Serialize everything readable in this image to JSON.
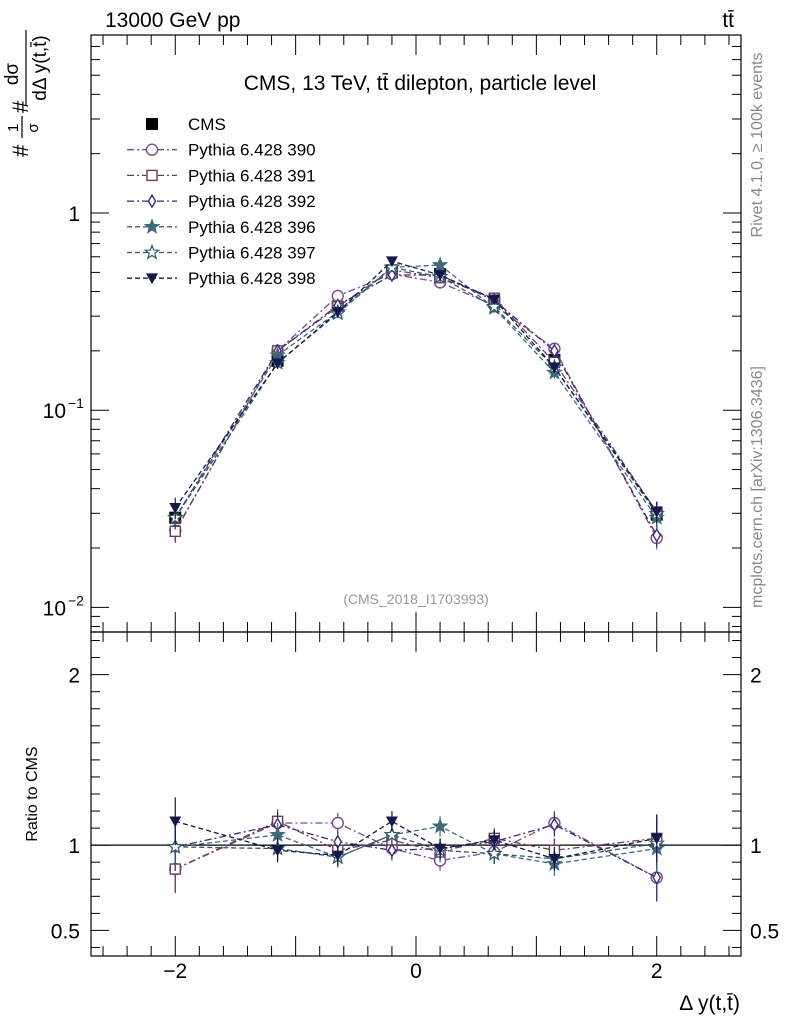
{
  "header": {
    "left": "13000 GeV pp",
    "right": "tt̄"
  },
  "main_plot": {
    "title": "CMS, 13 TeV, tt̄ dilepton, particle level",
    "ylabel": "#1/σ# dσ / dΔ y(t,t̄)",
    "ylabel_num": "dσ",
    "ylabel_den": "dΔ y(t,t̄)",
    "ylabel_pre": "#",
    "ylabel_frac_num": "1",
    "ylabel_frac_den": "σ",
    "ylabel_post": "#",
    "watermark": "(CMS_2018_I1703993)",
    "yscale": "log",
    "ylim": [
      0.0075,
      8
    ],
    "yticks": [
      {
        "value": 0.01,
        "base": "10",
        "exp": "−2"
      },
      {
        "value": 0.1,
        "base": "10",
        "exp": "−1"
      },
      {
        "value": 1,
        "base": "1",
        "exp": ""
      }
    ]
  },
  "ratio_plot": {
    "ylabel": "Ratio to CMS",
    "ylim": [
      0.35,
      2.25
    ],
    "yticks": [
      "0.5",
      "1",
      "2"
    ]
  },
  "xaxis": {
    "label": "Δ y(t,t̄)",
    "xlim": [
      -2.7,
      2.7
    ],
    "ticks": [
      "−2",
      "0",
      "2"
    ]
  },
  "side_text": {
    "rivet": "Rivet 4.1.0, ≥ 100k events",
    "mcplots": "mcplots.cern.ch [arXiv:1306.3436]"
  },
  "chart_data": {
    "type": "scatter",
    "x": [
      -2.0,
      -1.15,
      -0.65,
      -0.2,
      0.2,
      0.65,
      1.15,
      2.0
    ],
    "series": [
      {
        "name": "CMS",
        "color": "#000000",
        "marker": "filled-square",
        "line": "none",
        "values": [
          0.0285,
          0.178,
          0.335,
          0.5,
          0.49,
          0.355,
          0.18,
          0.0295
        ],
        "ratio": [
          1,
          1,
          1,
          1,
          1,
          1,
          1,
          1
        ]
      },
      {
        "name": "Pythia 6.428 390",
        "color": "#7a4a8c",
        "marker": "open-circle",
        "line": "dashdot",
        "values": [
          0.0245,
          0.2,
          0.38,
          0.49,
          0.445,
          0.34,
          0.205,
          0.0225
        ],
        "ratio": [
          0.86,
          1.13,
          1.13,
          0.98,
          0.91,
          0.96,
          1.13,
          0.81
        ]
      },
      {
        "name": "Pythia 6.428 391",
        "color": "#6a3f5c",
        "marker": "open-square",
        "line": "dashdot",
        "values": [
          0.0243,
          0.2,
          0.335,
          0.515,
          0.47,
          0.37,
          0.175,
          0.0305
        ],
        "ratio": [
          0.86,
          1.14,
          0.97,
          1.03,
          0.96,
          1.04,
          0.97,
          1.04
        ]
      },
      {
        "name": "Pythia 6.428 392",
        "color": "#3d2a7a",
        "marker": "open-diamond",
        "line": "dashdot",
        "values": [
          0.0285,
          0.2,
          0.34,
          0.485,
          0.485,
          0.36,
          0.2,
          0.0232
        ],
        "ratio": [
          0.99,
          1.12,
          1.02,
          0.97,
          0.98,
          1.02,
          1.12,
          0.81
        ]
      },
      {
        "name": "Pythia 6.428 396",
        "color": "#3f6a7a",
        "marker": "filled-star",
        "line": "dashed",
        "values": [
          0.0285,
          0.19,
          0.315,
          0.53,
          0.545,
          0.33,
          0.155,
          0.0285
        ],
        "ratio": [
          0.99,
          1.06,
          0.93,
          1.06,
          1.11,
          0.95,
          0.89,
          0.98
        ]
      },
      {
        "name": "Pythia 6.428 397",
        "color": "#2f5a6a",
        "marker": "open-star",
        "line": "dashed",
        "values": [
          0.0285,
          0.174,
          0.31,
          0.53,
          0.475,
          0.335,
          0.165,
          0.0298
        ],
        "ratio": [
          0.99,
          0.98,
          0.93,
          1.06,
          0.97,
          0.95,
          0.92,
          1.01
        ]
      },
      {
        "name": "Pythia 6.428 398",
        "color": "#15184a",
        "marker": "filled-triangle-down",
        "line": "dashed",
        "values": [
          0.032,
          0.173,
          0.315,
          0.57,
          0.485,
          0.365,
          0.165,
          0.0305
        ],
        "ratio": [
          1.14,
          0.97,
          0.94,
          1.14,
          0.98,
          1.03,
          0.92,
          1.04
        ]
      }
    ],
    "cms_errors_rel": [
      0.14,
      0.07,
      0.06,
      0.06,
      0.06,
      0.06,
      0.07,
      0.14
    ]
  }
}
